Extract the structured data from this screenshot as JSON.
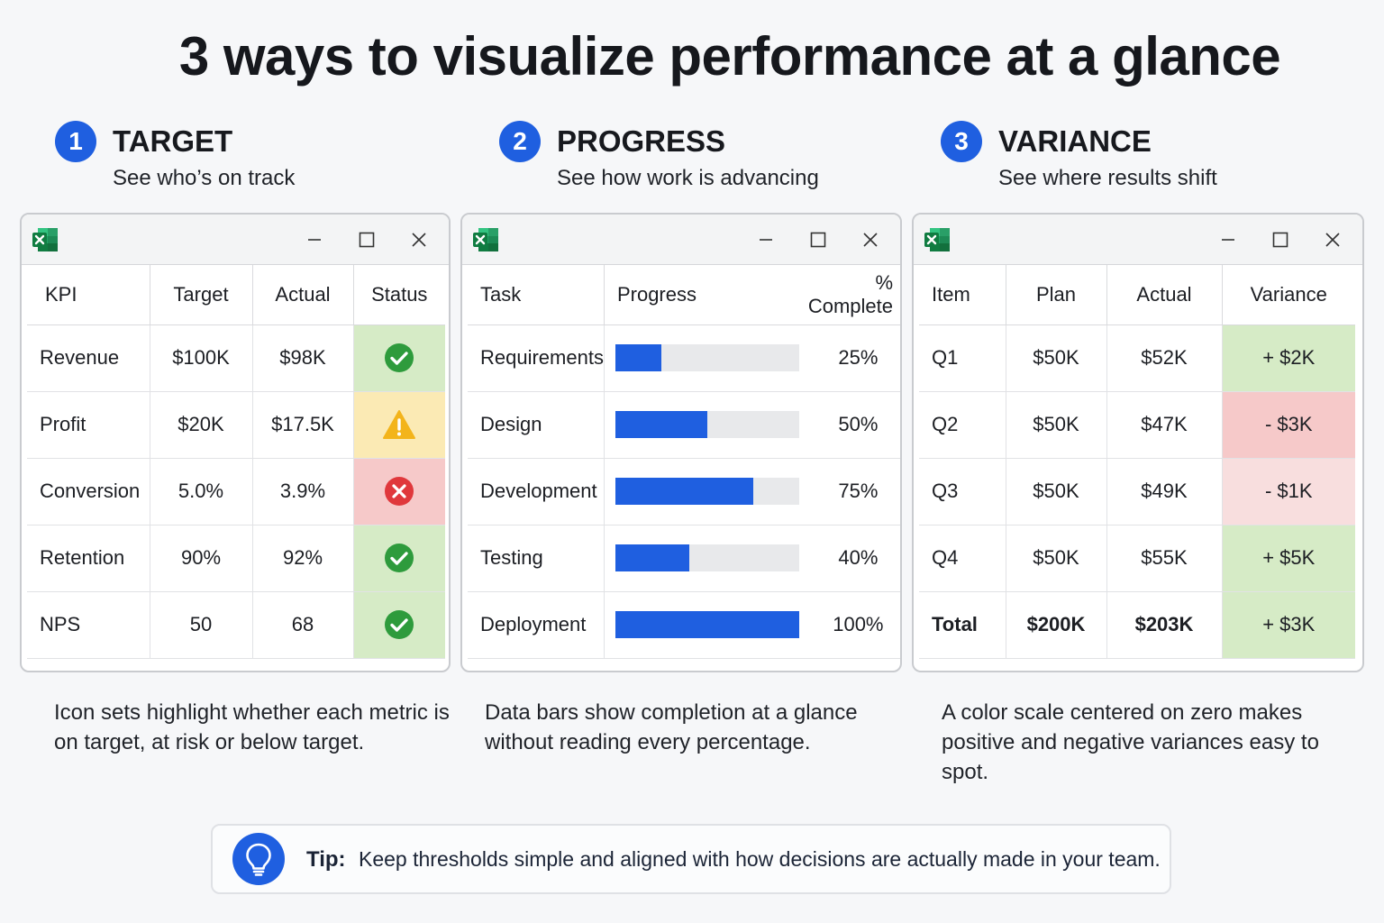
{
  "title": "3 ways to visualize performance at a glance",
  "colors": {
    "accent": "#1f5fe0",
    "good": "#d6ebc6",
    "warn": "#fbeab4",
    "bad": "#f6c9c9",
    "bad_light": "#f8dede",
    "check": "#2e9b3c",
    "alert": "#f3b41b",
    "cross": "#e0383c"
  },
  "sections": [
    {
      "number": "1",
      "title": "TARGET",
      "subtitle": "See who’s on track",
      "caption": "Icon sets highlight whether each metric is on target, at risk or below target.",
      "table": {
        "headers": [
          "KPI",
          "Target",
          "Actual",
          "Status"
        ],
        "rows": [
          {
            "kpi": "Revenue",
            "target": "$100K",
            "actual": "$98K",
            "status": "on-target",
            "icon": "check-circle-icon"
          },
          {
            "kpi": "Profit",
            "target": "$20K",
            "actual": "$17.5K",
            "status": "at-risk",
            "icon": "warning-icon"
          },
          {
            "kpi": "Conversion",
            "target": "5.0%",
            "actual": "3.9%",
            "status": "below-target",
            "icon": "cross-circle-icon"
          },
          {
            "kpi": "Retention",
            "target": "90%",
            "actual": "92%",
            "status": "on-target",
            "icon": "check-circle-icon"
          },
          {
            "kpi": "NPS",
            "target": "50",
            "actual": "68",
            "status": "on-target",
            "icon": "check-circle-icon"
          }
        ]
      }
    },
    {
      "number": "2",
      "title": "PROGRESS",
      "subtitle": "See how work is advancing",
      "caption": "Data bars show completion at a glance without reading every percentage.",
      "table": {
        "headers": [
          "Task",
          "Progress",
          "% Complete"
        ],
        "rows": [
          {
            "task": "Requirements",
            "progress": 0.25,
            "pct": "25%"
          },
          {
            "task": "Design",
            "progress": 0.5,
            "pct": "50%"
          },
          {
            "task": "Development",
            "progress": 0.75,
            "pct": "75%"
          },
          {
            "task": "Testing",
            "progress": 0.4,
            "pct": "40%"
          },
          {
            "task": "Deployment",
            "progress": 1.0,
            "pct": "100%"
          }
        ]
      }
    },
    {
      "number": "3",
      "title": "VARIANCE",
      "subtitle": "See where results shift",
      "caption": "A color scale centered on zero makes positive and negative variances easy to spot.",
      "table": {
        "headers": [
          "Item",
          "Plan",
          "Actual",
          "Variance"
        ],
        "rows": [
          {
            "item": "Q1",
            "plan": "$50K",
            "actual": "$52K",
            "variance": "+ $2K",
            "tone": "good"
          },
          {
            "item": "Q2",
            "plan": "$50K",
            "actual": "$47K",
            "variance": "- $3K",
            "tone": "bad"
          },
          {
            "item": "Q3",
            "plan": "$50K",
            "actual": "$49K",
            "variance": "- $1K",
            "tone": "bad_light"
          },
          {
            "item": "Q4",
            "plan": "$50K",
            "actual": "$55K",
            "variance": "+ $5K",
            "tone": "good"
          }
        ],
        "total": {
          "item": "Total",
          "plan": "$200K",
          "actual": "$203K",
          "variance": "+ $3K",
          "tone": "good"
        }
      }
    }
  ],
  "tip": {
    "label": "Tip:",
    "text": "Keep thresholds simple and aligned with how decisions are actually made in your team."
  }
}
